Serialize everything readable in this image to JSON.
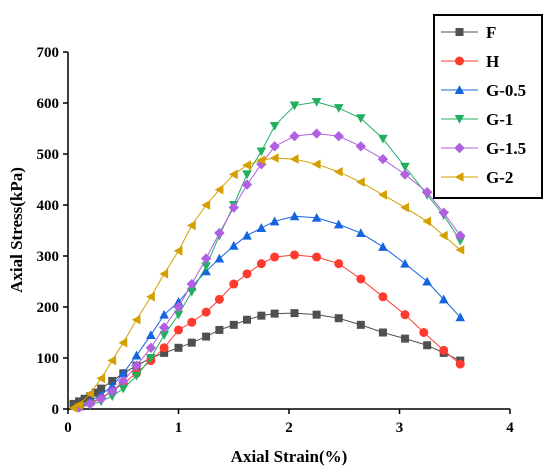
{
  "chart_data": {
    "type": "line",
    "title": "",
    "xlabel": "Axial Strain(%)",
    "ylabel": "Axial Stress(kPa)",
    "xlim": [
      0,
      4
    ],
    "ylim": [
      0,
      700
    ],
    "xticks": [
      "0",
      "1",
      "2",
      "3",
      "4"
    ],
    "yticks": [
      "0",
      "100",
      "200",
      "300",
      "400",
      "500",
      "600",
      "700"
    ],
    "grid": false,
    "legend": "top-right",
    "series": [
      {
        "name": "F",
        "color": "#505050",
        "marker": "square",
        "x": [
          0.05,
          0.1,
          0.15,
          0.2,
          0.25,
          0.3,
          0.4,
          0.5,
          0.62,
          0.75,
          0.87,
          1.0,
          1.12,
          1.25,
          1.37,
          1.5,
          1.62,
          1.75,
          1.87,
          2.05,
          2.25,
          2.45,
          2.65,
          2.85,
          3.05,
          3.25,
          3.4,
          3.55
        ],
        "y": [
          10,
          15,
          20,
          25,
          32,
          40,
          55,
          70,
          85,
          100,
          110,
          120,
          130,
          142,
          155,
          165,
          175,
          183,
          187,
          188,
          185,
          178,
          165,
          150,
          138,
          125,
          110,
          95
        ]
      },
      {
        "name": "H",
        "color": "#ff3b30",
        "marker": "circle",
        "x": [
          0.1,
          0.2,
          0.3,
          0.4,
          0.5,
          0.62,
          0.75,
          0.87,
          1.0,
          1.12,
          1.25,
          1.37,
          1.5,
          1.62,
          1.75,
          1.87,
          2.05,
          2.25,
          2.45,
          2.65,
          2.85,
          3.05,
          3.22,
          3.4,
          3.55
        ],
        "y": [
          5,
          12,
          22,
          35,
          50,
          70,
          95,
          120,
          155,
          170,
          190,
          215,
          245,
          265,
          285,
          298,
          302,
          298,
          285,
          255,
          220,
          185,
          150,
          115,
          88
        ]
      },
      {
        "name": "G-0.5",
        "color": "#1565e0",
        "marker": "triangle-up",
        "x": [
          0.1,
          0.2,
          0.3,
          0.4,
          0.5,
          0.62,
          0.75,
          0.87,
          1.0,
          1.12,
          1.25,
          1.37,
          1.5,
          1.62,
          1.75,
          1.87,
          2.05,
          2.25,
          2.45,
          2.65,
          2.85,
          3.05,
          3.25,
          3.4,
          3.55
        ],
        "y": [
          5,
          15,
          28,
          45,
          70,
          105,
          145,
          185,
          210,
          240,
          270,
          295,
          320,
          340,
          355,
          368,
          378,
          375,
          362,
          345,
          318,
          285,
          250,
          215,
          180
        ]
      },
      {
        "name": "G-1",
        "color": "#20b060",
        "marker": "triangle-down",
        "x": [
          0.1,
          0.2,
          0.3,
          0.4,
          0.5,
          0.62,
          0.75,
          0.87,
          1.0,
          1.12,
          1.25,
          1.37,
          1.5,
          1.62,
          1.75,
          1.87,
          2.05,
          2.25,
          2.45,
          2.65,
          2.85,
          3.05,
          3.25,
          3.4,
          3.55
        ],
        "y": [
          3,
          8,
          15,
          25,
          40,
          65,
          100,
          145,
          185,
          230,
          280,
          340,
          400,
          460,
          505,
          555,
          595,
          602,
          590,
          570,
          530,
          475,
          420,
          380,
          330
        ]
      },
      {
        "name": "G-1.5",
        "color": "#b060e0",
        "marker": "diamond",
        "x": [
          0.1,
          0.2,
          0.3,
          0.4,
          0.5,
          0.62,
          0.75,
          0.87,
          1.0,
          1.12,
          1.25,
          1.37,
          1.5,
          1.62,
          1.75,
          1.87,
          2.05,
          2.25,
          2.45,
          2.65,
          2.85,
          3.05,
          3.25,
          3.4,
          3.55
        ],
        "y": [
          3,
          10,
          20,
          35,
          55,
          85,
          120,
          160,
          200,
          245,
          295,
          345,
          395,
          440,
          480,
          515,
          535,
          540,
          535,
          515,
          490,
          460,
          425,
          385,
          340
        ]
      },
      {
        "name": "G-2",
        "color": "#d4a000",
        "marker": "triangle-left",
        "x": [
          0.05,
          0.1,
          0.2,
          0.3,
          0.4,
          0.5,
          0.62,
          0.75,
          0.87,
          1.0,
          1.12,
          1.25,
          1.37,
          1.5,
          1.62,
          1.75,
          1.87,
          2.05,
          2.25,
          2.45,
          2.65,
          2.85,
          3.05,
          3.25,
          3.4,
          3.55
        ],
        "y": [
          2,
          8,
          30,
          60,
          95,
          130,
          175,
          220,
          265,
          310,
          360,
          400,
          430,
          460,
          478,
          488,
          492,
          490,
          480,
          465,
          445,
          420,
          395,
          368,
          340,
          312
        ]
      }
    ]
  }
}
